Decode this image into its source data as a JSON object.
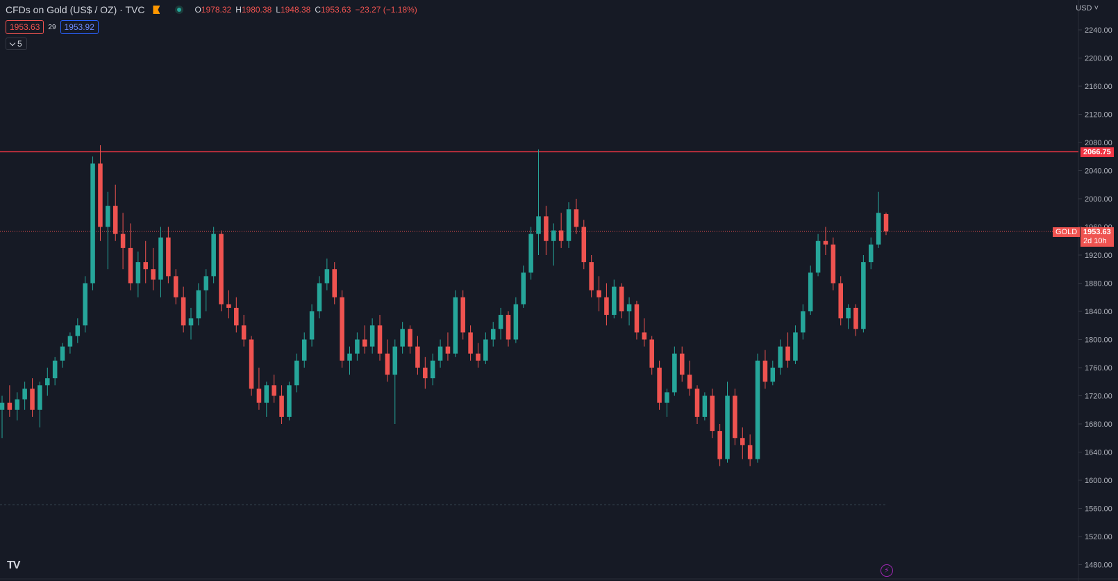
{
  "legend": {
    "title": "CFDs on Gold (US$ / OZ) · TVC",
    "open_label": "O",
    "open": "1978.32",
    "high_label": "H",
    "high": "1980.38",
    "low_label": "L",
    "low": "1948.38",
    "close_label": "C",
    "close": "1953.63",
    "change": "−23.27 (−1.18%)"
  },
  "quote": {
    "bid": "1953.63",
    "spread": "29",
    "ask": "1953.92"
  },
  "indicator_toggle": {
    "count": "5"
  },
  "price_scale": {
    "currency": "USD",
    "ticks": [
      "2240.00",
      "2200.00",
      "2160.00",
      "2120.00",
      "2080.00",
      "2040.00",
      "2000.00",
      "1960.00",
      "1920.00",
      "1880.00",
      "1840.00",
      "1800.00",
      "1760.00",
      "1720.00",
      "1680.00",
      "1640.00",
      "1600.00",
      "1560.00",
      "1520.00",
      "1480.00"
    ]
  },
  "resistance_line": {
    "price": "2066.75",
    "color": "#f23645"
  },
  "current_price": {
    "symbol": "GOLD",
    "price": "1953.63",
    "countdown": "2d 10h",
    "color": "#ef5350"
  },
  "colors": {
    "up": "#26a69a",
    "down": "#ef5350",
    "background": "#161a25",
    "grid": "#2a2e39"
  },
  "chart_data": {
    "type": "candlestick",
    "y_axis_range": [
      1460,
      2260
    ],
    "reference_levels": [
      2066.75,
      1953.63,
      1565
    ],
    "candles": [
      [
        1700,
        1720,
        1660,
        1710
      ],
      [
        1710,
        1735,
        1690,
        1700
      ],
      [
        1700,
        1725,
        1685,
        1715
      ],
      [
        1715,
        1740,
        1700,
        1730
      ],
      [
        1730,
        1745,
        1690,
        1700
      ],
      [
        1700,
        1740,
        1675,
        1735
      ],
      [
        1735,
        1760,
        1720,
        1745
      ],
      [
        1745,
        1775,
        1735,
        1770
      ],
      [
        1770,
        1795,
        1760,
        1790
      ],
      [
        1790,
        1810,
        1780,
        1805
      ],
      [
        1805,
        1830,
        1795,
        1820
      ],
      [
        1820,
        1890,
        1810,
        1880
      ],
      [
        1880,
        2060,
        1870,
        2050
      ],
      [
        2050,
        2076,
        1940,
        1960
      ],
      [
        1960,
        2010,
        1900,
        1990
      ],
      [
        1990,
        2020,
        1940,
        1950
      ],
      [
        1950,
        1980,
        1900,
        1930
      ],
      [
        1930,
        1965,
        1870,
        1880
      ],
      [
        1880,
        1925,
        1860,
        1910
      ],
      [
        1910,
        1940,
        1880,
        1900
      ],
      [
        1900,
        1930,
        1870,
        1885
      ],
      [
        1885,
        1960,
        1860,
        1945
      ],
      [
        1945,
        1960,
        1880,
        1890
      ],
      [
        1890,
        1900,
        1850,
        1860
      ],
      [
        1860,
        1875,
        1810,
        1820
      ],
      [
        1820,
        1845,
        1800,
        1830
      ],
      [
        1830,
        1880,
        1820,
        1870
      ],
      [
        1870,
        1900,
        1840,
        1890
      ],
      [
        1890,
        1960,
        1880,
        1950
      ],
      [
        1950,
        1955,
        1840,
        1850
      ],
      [
        1850,
        1870,
        1830,
        1845
      ],
      [
        1845,
        1860,
        1810,
        1820
      ],
      [
        1820,
        1835,
        1790,
        1800
      ],
      [
        1800,
        1805,
        1720,
        1730
      ],
      [
        1730,
        1760,
        1700,
        1710
      ],
      [
        1710,
        1740,
        1690,
        1735
      ],
      [
        1735,
        1750,
        1710,
        1720
      ],
      [
        1720,
        1735,
        1680,
        1690
      ],
      [
        1690,
        1740,
        1685,
        1735
      ],
      [
        1735,
        1780,
        1725,
        1770
      ],
      [
        1770,
        1810,
        1760,
        1800
      ],
      [
        1800,
        1850,
        1790,
        1840
      ],
      [
        1840,
        1890,
        1830,
        1880
      ],
      [
        1880,
        1915,
        1870,
        1900
      ],
      [
        1900,
        1910,
        1850,
        1860
      ],
      [
        1860,
        1870,
        1760,
        1770
      ],
      [
        1770,
        1790,
        1750,
        1780
      ],
      [
        1780,
        1810,
        1770,
        1800
      ],
      [
        1800,
        1820,
        1780,
        1790
      ],
      [
        1790,
        1830,
        1780,
        1820
      ],
      [
        1820,
        1835,
        1770,
        1780
      ],
      [
        1780,
        1800,
        1740,
        1750
      ],
      [
        1750,
        1800,
        1680,
        1790
      ],
      [
        1790,
        1825,
        1780,
        1815
      ],
      [
        1815,
        1820,
        1780,
        1790
      ],
      [
        1790,
        1805,
        1750,
        1760
      ],
      [
        1760,
        1775,
        1730,
        1745
      ],
      [
        1745,
        1780,
        1735,
        1770
      ],
      [
        1770,
        1800,
        1760,
        1790
      ],
      [
        1790,
        1810,
        1770,
        1780
      ],
      [
        1780,
        1870,
        1775,
        1860
      ],
      [
        1860,
        1870,
        1800,
        1810
      ],
      [
        1810,
        1820,
        1770,
        1780
      ],
      [
        1780,
        1795,
        1760,
        1770
      ],
      [
        1770,
        1810,
        1765,
        1800
      ],
      [
        1800,
        1825,
        1790,
        1815
      ],
      [
        1815,
        1845,
        1800,
        1835
      ],
      [
        1835,
        1840,
        1790,
        1800
      ],
      [
        1800,
        1860,
        1795,
        1850
      ],
      [
        1850,
        1905,
        1845,
        1895
      ],
      [
        1895,
        1960,
        1885,
        1950
      ],
      [
        1950,
        2070,
        1920,
        1975
      ],
      [
        1975,
        1990,
        1920,
        1940
      ],
      [
        1940,
        1965,
        1905,
        1955
      ],
      [
        1955,
        1980,
        1930,
        1940
      ],
      [
        1940,
        1995,
        1930,
        1985
      ],
      [
        1985,
        2000,
        1950,
        1960
      ],
      [
        1960,
        1970,
        1900,
        1910
      ],
      [
        1910,
        1920,
        1860,
        1870
      ],
      [
        1870,
        1890,
        1840,
        1860
      ],
      [
        1860,
        1880,
        1820,
        1835
      ],
      [
        1835,
        1885,
        1830,
        1875
      ],
      [
        1875,
        1880,
        1830,
        1840
      ],
      [
        1840,
        1860,
        1820,
        1850
      ],
      [
        1850,
        1855,
        1800,
        1810
      ],
      [
        1810,
        1830,
        1790,
        1800
      ],
      [
        1800,
        1805,
        1750,
        1760
      ],
      [
        1760,
        1770,
        1700,
        1710
      ],
      [
        1710,
        1730,
        1690,
        1725
      ],
      [
        1725,
        1790,
        1720,
        1780
      ],
      [
        1780,
        1790,
        1740,
        1750
      ],
      [
        1750,
        1770,
        1720,
        1730
      ],
      [
        1730,
        1735,
        1680,
        1690
      ],
      [
        1690,
        1725,
        1685,
        1720
      ],
      [
        1720,
        1730,
        1660,
        1670
      ],
      [
        1670,
        1680,
        1620,
        1630
      ],
      [
        1630,
        1740,
        1625,
        1720
      ],
      [
        1720,
        1730,
        1650,
        1660
      ],
      [
        1660,
        1675,
        1630,
        1650
      ],
      [
        1650,
        1665,
        1620,
        1630
      ],
      [
        1630,
        1780,
        1625,
        1770
      ],
      [
        1770,
        1785,
        1730,
        1740
      ],
      [
        1740,
        1770,
        1735,
        1760
      ],
      [
        1760,
        1800,
        1750,
        1790
      ],
      [
        1790,
        1810,
        1760,
        1770
      ],
      [
        1770,
        1820,
        1765,
        1810
      ],
      [
        1810,
        1850,
        1800,
        1840
      ],
      [
        1840,
        1905,
        1835,
        1895
      ],
      [
        1895,
        1950,
        1890,
        1940
      ],
      [
        1940,
        1960,
        1920,
        1935
      ],
      [
        1935,
        1945,
        1870,
        1880
      ],
      [
        1880,
        1890,
        1820,
        1830
      ],
      [
        1830,
        1850,
        1815,
        1845
      ],
      [
        1845,
        1850,
        1805,
        1815
      ],
      [
        1815,
        1920,
        1810,
        1910
      ],
      [
        1910,
        1945,
        1900,
        1935
      ],
      [
        1935,
        2010,
        1930,
        1980
      ],
      [
        1978.32,
        1980.38,
        1948.38,
        1953.63
      ]
    ]
  }
}
